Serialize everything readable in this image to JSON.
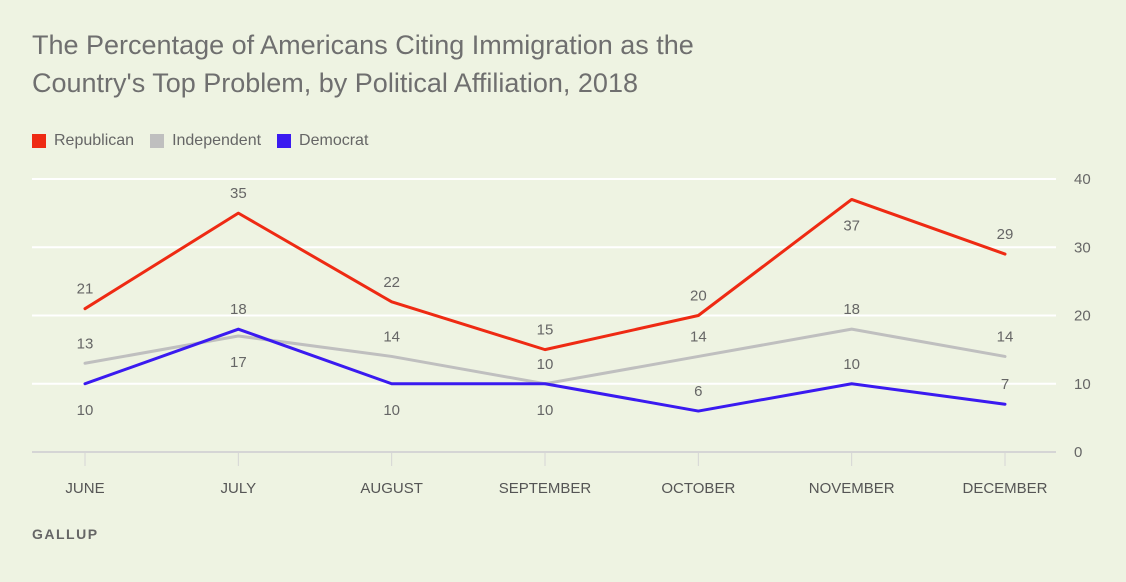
{
  "chart_data": {
    "type": "line",
    "title": "The Percentage of Americans Citing Immigration as the Country's Top Problem, by Political Affiliation, 2018",
    "categories": [
      "JUNE",
      "JULY",
      "AUGUST",
      "SEPTEMBER",
      "OCTOBER",
      "NOVEMBER",
      "DECEMBER"
    ],
    "series": [
      {
        "name": "Republican",
        "color": "#ee2a13",
        "values": [
          21,
          35,
          22,
          15,
          20,
          37,
          29
        ]
      },
      {
        "name": "Independent",
        "color": "#bfbfbf",
        "values": [
          13,
          17,
          14,
          10,
          14,
          18,
          14
        ]
      },
      {
        "name": "Democrat",
        "color": "#3a1af0",
        "values": [
          10,
          18,
          10,
          10,
          6,
          10,
          7
        ]
      }
    ],
    "yticks": [
      "0",
      "10",
      "20",
      "30",
      "40"
    ],
    "ylim": [
      0,
      40
    ],
    "xlabel": "",
    "ylabel": "",
    "grid": true,
    "legend_position": "top-left",
    "labels": [
      {
        "series": 0,
        "values": [
          "21",
          "35",
          "22",
          "15",
          "20",
          "37",
          "29"
        ],
        "placement": [
          "above",
          "above",
          "above",
          "above",
          "above",
          "below",
          "above"
        ]
      },
      {
        "series": 1,
        "values": [
          "13",
          "17",
          "14",
          "10",
          "14",
          "18",
          "14"
        ],
        "placement": [
          "above",
          "below",
          "above",
          "above",
          "above",
          "above",
          "above"
        ]
      },
      {
        "series": 2,
        "values": [
          "10",
          "18",
          "10",
          "10",
          "6",
          "10",
          "7"
        ],
        "placement": [
          "below",
          "above",
          "below",
          "below",
          "above",
          "above",
          "above"
        ]
      }
    ]
  },
  "header": {
    "title_line1": "The Percentage of Americans Citing Immigration as the",
    "title_line2": "Country's Top Problem, by Political Affiliation, 2018"
  },
  "legend": {
    "items": [
      {
        "label": "Republican",
        "color": "#ee2a13"
      },
      {
        "label": "Independent",
        "color": "#bfbfbf"
      },
      {
        "label": "Democrat",
        "color": "#3a1af0"
      }
    ]
  },
  "source": "GALLUP"
}
